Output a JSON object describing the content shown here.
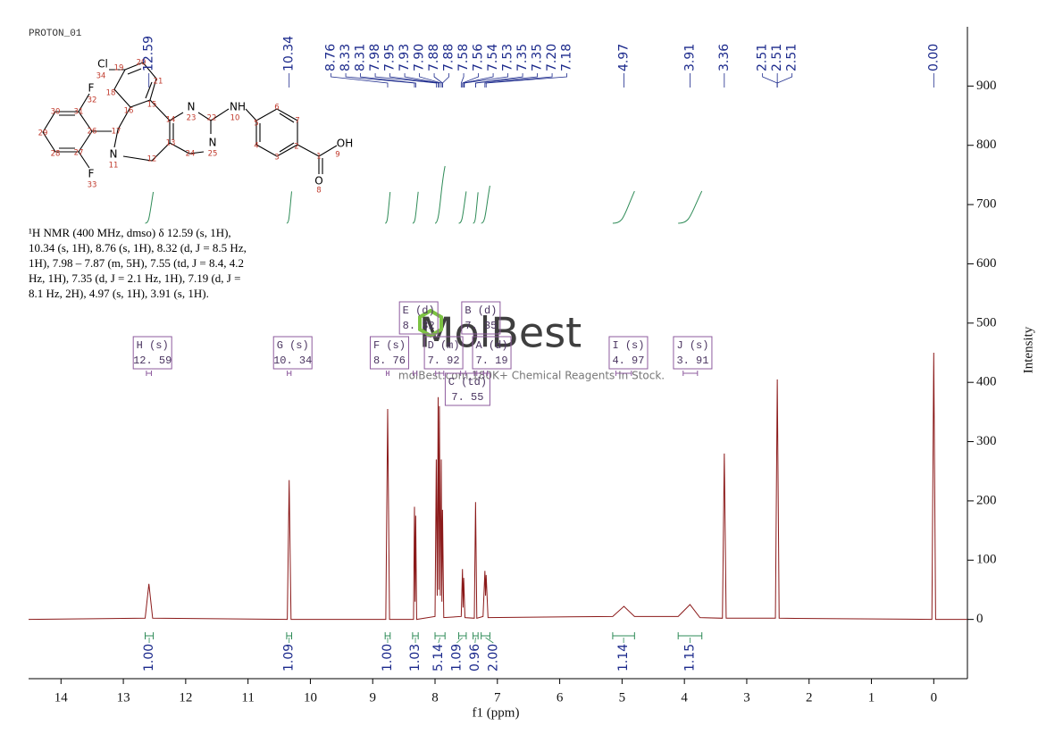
{
  "label": "PROTON_01",
  "description": "¹H NMR (400 MHz, dmso) δ 12.59 (s, 1H), 10.34 (s, 1H), 8.76 (s, 1H), 8.32 (d, J = 8.5 Hz, 1H), 7.98 – 7.87 (m, 5H), 7.55 (td, J = 8.4, 4.2 Hz, 1H), 7.35 (d, J = 2.1 Hz, 1H), 7.19 (d, J = 8.1 Hz, 2H), 4.97 (s, 1H), 3.91 (s, 1H).",
  "molecule": {
    "atoms": [
      "Cl",
      "F",
      "F",
      "N",
      "N",
      "N",
      "NH",
      "OH",
      "O"
    ],
    "locants": [
      "34",
      "19",
      "20",
      "21",
      "18",
      "15",
      "16",
      "14",
      "23",
      "22",
      "10",
      "5",
      "6",
      "7",
      "4",
      "3",
      "2",
      "1",
      "9",
      "8",
      "17",
      "11",
      "12",
      "13",
      "24",
      "25",
      "26",
      "27",
      "28",
      "29",
      "30",
      "31",
      "32",
      "33"
    ]
  },
  "watermark": "MolBest",
  "watermark_note": "molBest.com,180K+ Chemical Reagents In Stock.",
  "chart_data": {
    "type": "line",
    "x_label": "f1 (ppm)",
    "y_label": "Intensity",
    "color": "#8b1a1a",
    "xlim": [
      14.52,
      -0.54
    ],
    "ylim": [
      -100,
      1000
    ],
    "xticks": [
      14,
      13,
      12,
      11,
      10,
      9,
      8,
      7,
      6,
      5,
      4,
      3,
      2,
      1,
      0
    ],
    "yticks": [
      0,
      100,
      200,
      300,
      400,
      500,
      600,
      700,
      800,
      900
    ],
    "x": [
      14.52,
      12.65,
      12.59,
      12.53,
      10.37,
      10.34,
      10.31,
      8.79,
      8.76,
      8.73,
      8.345,
      8.33,
      8.32,
      8.31,
      8.295,
      8.0,
      7.98,
      7.965,
      7.95,
      7.94,
      7.93,
      7.915,
      7.9,
      7.89,
      7.88,
      7.86,
      7.58,
      7.56,
      7.55,
      7.54,
      7.52,
      7.37,
      7.35,
      7.33,
      7.23,
      7.2,
      7.19,
      7.18,
      7.15,
      5.15,
      4.97,
      4.8,
      4.1,
      3.91,
      3.75,
      3.39,
      3.36,
      3.33,
      2.54,
      2.51,
      2.48,
      0.03,
      0.0,
      -0.03,
      -0.54
    ],
    "values": [
      0,
      2,
      60,
      2,
      0,
      235,
      0,
      0,
      355,
      0,
      0,
      190,
      30,
      175,
      0,
      5,
      270,
      40,
      375,
      50,
      360,
      40,
      270,
      30,
      185,
      3,
      5,
      85,
      20,
      70,
      3,
      2,
      198,
      2,
      5,
      82,
      40,
      75,
      3,
      5,
      22,
      5,
      5,
      25,
      3,
      2,
      280,
      2,
      2,
      405,
      2,
      0,
      450,
      0,
      0
    ],
    "peak_labels": [
      {
        "value": 12.59,
        "label": "12.59"
      },
      {
        "value": 10.34,
        "label": "10.34"
      },
      {
        "value": 8.76,
        "label": "8.76"
      },
      {
        "value": 8.33,
        "label": "8.33"
      },
      {
        "value": 8.31,
        "label": "8.31"
      },
      {
        "value": 7.98,
        "label": "7.98"
      },
      {
        "value": 7.95,
        "label": "7.95"
      },
      {
        "value": 7.93,
        "label": "7.93"
      },
      {
        "value": 7.9,
        "label": "7.90"
      },
      {
        "value": 7.88,
        "label": "7.88"
      },
      {
        "value": 7.88,
        "label": "7.88"
      },
      {
        "value": 7.58,
        "label": "7.58"
      },
      {
        "value": 7.56,
        "label": "7.56"
      },
      {
        "value": 7.54,
        "label": "7.54"
      },
      {
        "value": 7.53,
        "label": "7.53"
      },
      {
        "value": 7.35,
        "label": "7.35"
      },
      {
        "value": 7.35,
        "label": "7.35"
      },
      {
        "value": 7.2,
        "label": "7.20"
      },
      {
        "value": 7.18,
        "label": "7.18"
      },
      {
        "value": 4.97,
        "label": "4.97"
      },
      {
        "value": 3.91,
        "label": "3.91"
      },
      {
        "value": 3.36,
        "label": "3.36"
      },
      {
        "value": 2.51,
        "label": "2.51"
      },
      {
        "value": 2.51,
        "label": "2.51"
      },
      {
        "value": 2.51,
        "label": "2.51"
      },
      {
        "value": 0,
        "label": "0.00"
      }
    ],
    "multiplets": [
      {
        "name": "H (s)",
        "shift": {
          "value": 12.59,
          "label": "12. 59"
        },
        "range": [
          12.63,
          12.55
        ]
      },
      {
        "name": "G (s)",
        "shift": {
          "value": 10.34,
          "label": "10. 34"
        },
        "range": [
          10.37,
          10.31
        ]
      },
      {
        "name": "F (s)",
        "shift": {
          "value": 8.76,
          "label": "8. 76"
        },
        "range": [
          8.78,
          8.74
        ]
      },
      {
        "name": "E (d)",
        "shift": {
          "value": 8.32,
          "label": "8. 32"
        },
        "range": [
          8.35,
          8.29
        ]
      },
      {
        "name": "D (m)",
        "shift": {
          "value": 7.92,
          "label": "7. 92"
        },
        "range": [
          7.99,
          7.86
        ]
      },
      {
        "name": "B (d)",
        "shift": {
          "value": 7.35,
          "label": "7. 35"
        },
        "range": [
          7.37,
          7.33
        ]
      },
      {
        "name": "A (d)",
        "shift": {
          "value": 7.19,
          "label": "7. 19"
        },
        "range": [
          7.22,
          7.16
        ]
      },
      {
        "name": "C (td)",
        "shift": {
          "value": 7.55,
          "label": "7. 55"
        },
        "range": [
          7.59,
          7.51
        ]
      },
      {
        "name": "I (s)",
        "shift": {
          "value": 4.97,
          "label": "4. 97"
        },
        "range": [
          5.1,
          4.85
        ]
      },
      {
        "name": "J (s)",
        "shift": {
          "value": 3.91,
          "label": "3. 91"
        },
        "range": [
          4.02,
          3.79
        ]
      }
    ],
    "integrals": [
      {
        "value": 1,
        "label": "1.00",
        "range": [
          12.65,
          12.52
        ]
      },
      {
        "value": 1.09,
        "label": "1.09",
        "range": [
          10.38,
          10.3
        ]
      },
      {
        "value": 1,
        "label": "1.00",
        "range": [
          8.8,
          8.72
        ]
      },
      {
        "value": 1.03,
        "label": "1.03",
        "range": [
          8.36,
          8.27
        ]
      },
      {
        "value": 5.14,
        "label": "5.14",
        "range": [
          8.0,
          7.84
        ]
      },
      {
        "value": 1.09,
        "label": "1.09",
        "range": [
          7.62,
          7.5
        ]
      },
      {
        "value": 0.96,
        "label": "0.96",
        "range": [
          7.39,
          7.31
        ]
      },
      {
        "value": 2,
        "label": "2.00",
        "range": [
          7.26,
          7.12
        ]
      },
      {
        "value": 1.14,
        "label": "1.14",
        "range": [
          5.15,
          4.8
        ]
      },
      {
        "value": 1.15,
        "label": "1.15",
        "range": [
          4.1,
          3.72
        ]
      }
    ]
  }
}
